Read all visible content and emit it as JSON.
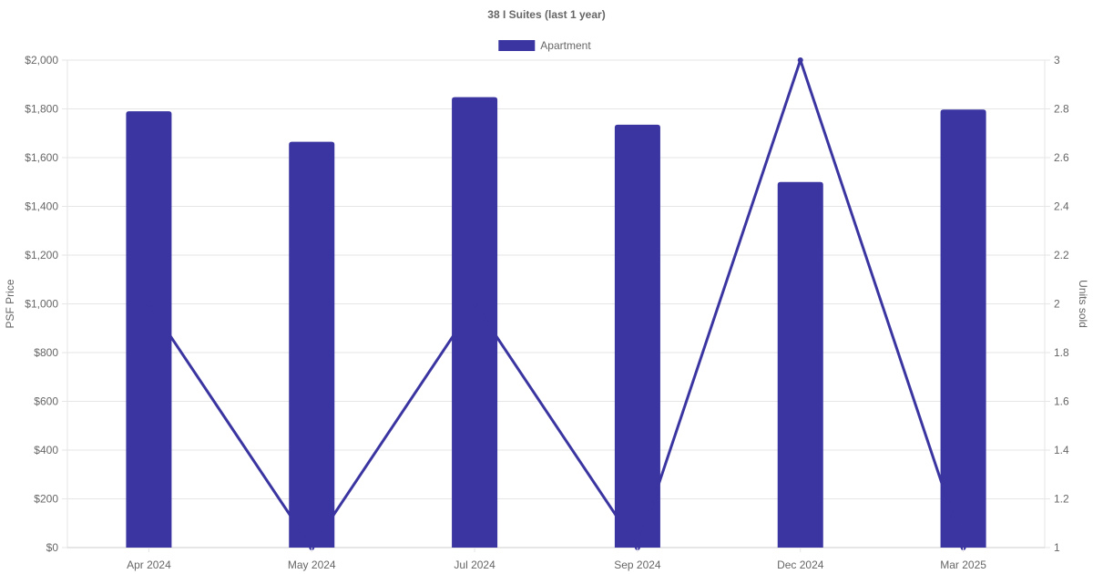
{
  "chart_data": {
    "title": "38 I Suites (last 1 year)",
    "type": "bar",
    "categories": [
      "Apr 2024",
      "May 2024",
      "Jul 2024",
      "Sep 2024",
      "Dec 2024",
      "Mar 2025"
    ],
    "series": [
      {
        "name": "Apartment",
        "type": "bar",
        "axis": "left",
        "values": [
          1790,
          1665,
          1848,
          1735,
          1500,
          1797
        ]
      },
      {
        "type": "line",
        "axis": "right",
        "values": [
          2,
          1,
          2,
          1,
          3,
          1
        ]
      }
    ],
    "y_left": {
      "label": "PSF Price",
      "min": 0,
      "max": 2000,
      "step": 200,
      "prefix": "$",
      "ticks": [
        "$0",
        "$200",
        "$400",
        "$600",
        "$800",
        "$1,000",
        "$1,200",
        "$1,400",
        "$1,600",
        "$1,800",
        "$2,000"
      ]
    },
    "y_right": {
      "label": "Units sold",
      "min": 1,
      "max": 3,
      "step": 0.2,
      "ticks": [
        "1",
        "1.2",
        "1.4",
        "1.6",
        "1.8",
        "2",
        "2.2",
        "2.4",
        "2.6",
        "2.8",
        "3"
      ]
    },
    "legend": {
      "position": "top-center",
      "entries": [
        "Apartment"
      ]
    },
    "grid": true,
    "colors": {
      "bar": "#3a35a0",
      "line": "#3a35a0",
      "grid": "#e6e6e6",
      "text": "#666666"
    }
  }
}
